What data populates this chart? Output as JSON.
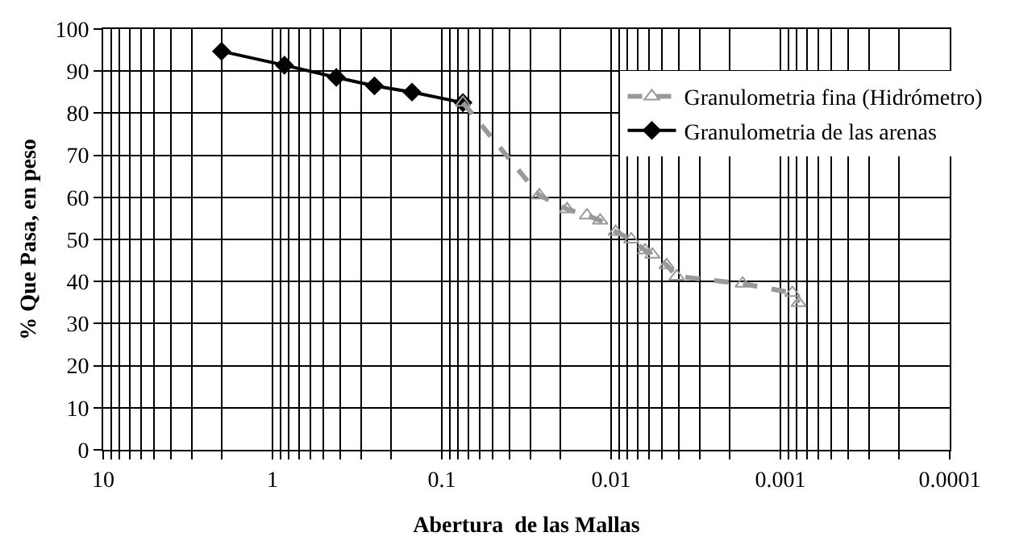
{
  "chart_data": {
    "type": "line",
    "xlabel": "Abertura  de las Mallas",
    "ylabel": "% Que Pasa, en peso",
    "log": "x",
    "xlim": [
      10,
      0.0001
    ],
    "xticks": [
      10,
      1,
      0.1,
      0.01,
      0.001,
      0.0001
    ],
    "ylim": [
      0,
      100
    ],
    "yticks": [
      0,
      10,
      20,
      30,
      40,
      50,
      60,
      70,
      80,
      90,
      100
    ],
    "grid": true,
    "legend": "top right",
    "series": [
      {
        "name": "Granulometria fina (Hidrómetro)",
        "color": "#999999",
        "line_style": "dashed",
        "marker": "triangle",
        "x": [
          0.075,
          0.0266,
          0.0182,
          0.0139,
          0.0116,
          0.0094,
          0.0076,
          0.0063,
          0.0057,
          0.0047,
          0.0041,
          0.00167,
          0.00085,
          0.00078
        ],
        "values": [
          82.5,
          60.5,
          57.2,
          55.7,
          54.5,
          51.8,
          50.0,
          47.4,
          46.4,
          43.9,
          41.2,
          39.5,
          37.3,
          34.9
        ]
      },
      {
        "name": "Granulometria de las arenas",
        "color": "#000000",
        "line_style": "solid",
        "marker": "diamond",
        "x": [
          2.0,
          0.85,
          0.42,
          0.25,
          0.15,
          0.075
        ],
        "values": [
          94.7,
          91.4,
          88.5,
          86.5,
          85.0,
          82.5
        ]
      }
    ]
  }
}
